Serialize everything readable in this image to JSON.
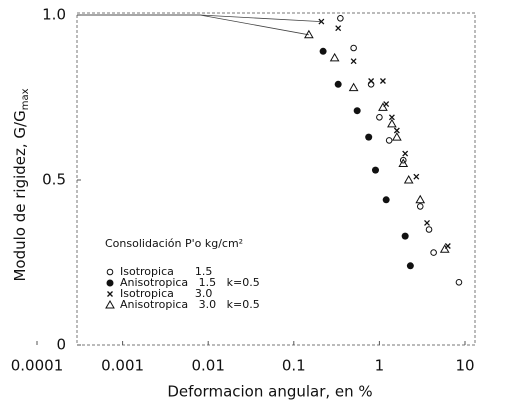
{
  "chart_data": {
    "type": "scatter",
    "y_label": "Modulo de rigidez, G/G",
    "y_label_sub": "max",
    "x_label": "Deformacion angular, en %",
    "legend_title": "Consolidación  P'o kg/cm²",
    "log_x": true,
    "xlim": [
      0.0001,
      10
    ],
    "ylim": [
      0,
      1
    ],
    "xticks": [
      0.0001,
      0.001,
      0.01,
      0.1,
      1,
      10
    ],
    "yticks": [
      0,
      0.5,
      {
        "value": 1,
        "label": "1.0"
      }
    ],
    "series": [
      {
        "name": "Isotropica      1.5",
        "marker": "open-circle",
        "color": "#111",
        "x": [
          0.35,
          0.5,
          0.8,
          1.0,
          1.3,
          1.9,
          3.0,
          3.8,
          4.3,
          8.5
        ],
        "values": [
          0.99,
          0.9,
          0.79,
          0.69,
          0.62,
          0.56,
          0.42,
          0.35,
          0.28,
          0.19
        ]
      },
      {
        "name": "Anisotropica   1.5   k=0.5",
        "marker": "filled-circle",
        "color": "#111",
        "x": [
          0.22,
          0.33,
          0.55,
          0.75,
          0.9,
          1.2,
          2.0,
          2.3
        ],
        "values": [
          0.89,
          0.79,
          0.71,
          0.63,
          0.53,
          0.44,
          0.33,
          0.24
        ]
      },
      {
        "name": "Isotropica      3.0",
        "marker": "cross",
        "color": "#111",
        "x": [
          0.21,
          0.33,
          0.5,
          0.8,
          1.1,
          1.2,
          1.4,
          1.6,
          2.0,
          2.7,
          3.6,
          6.3
        ],
        "values": [
          0.98,
          0.96,
          0.86,
          0.8,
          0.8,
          0.73,
          0.69,
          0.65,
          0.58,
          0.51,
          0.37,
          0.3
        ]
      },
      {
        "name": "Anisotropica   3.0   k=0.5",
        "marker": "open-triangle",
        "color": "#111",
        "x": [
          0.15,
          0.3,
          0.5,
          1.1,
          1.4,
          1.6,
          1.9,
          2.2,
          3.0,
          5.8
        ],
        "values": [
          0.94,
          0.87,
          0.78,
          0.72,
          0.67,
          0.63,
          0.55,
          0.5,
          0.44,
          0.29
        ]
      }
    ]
  }
}
